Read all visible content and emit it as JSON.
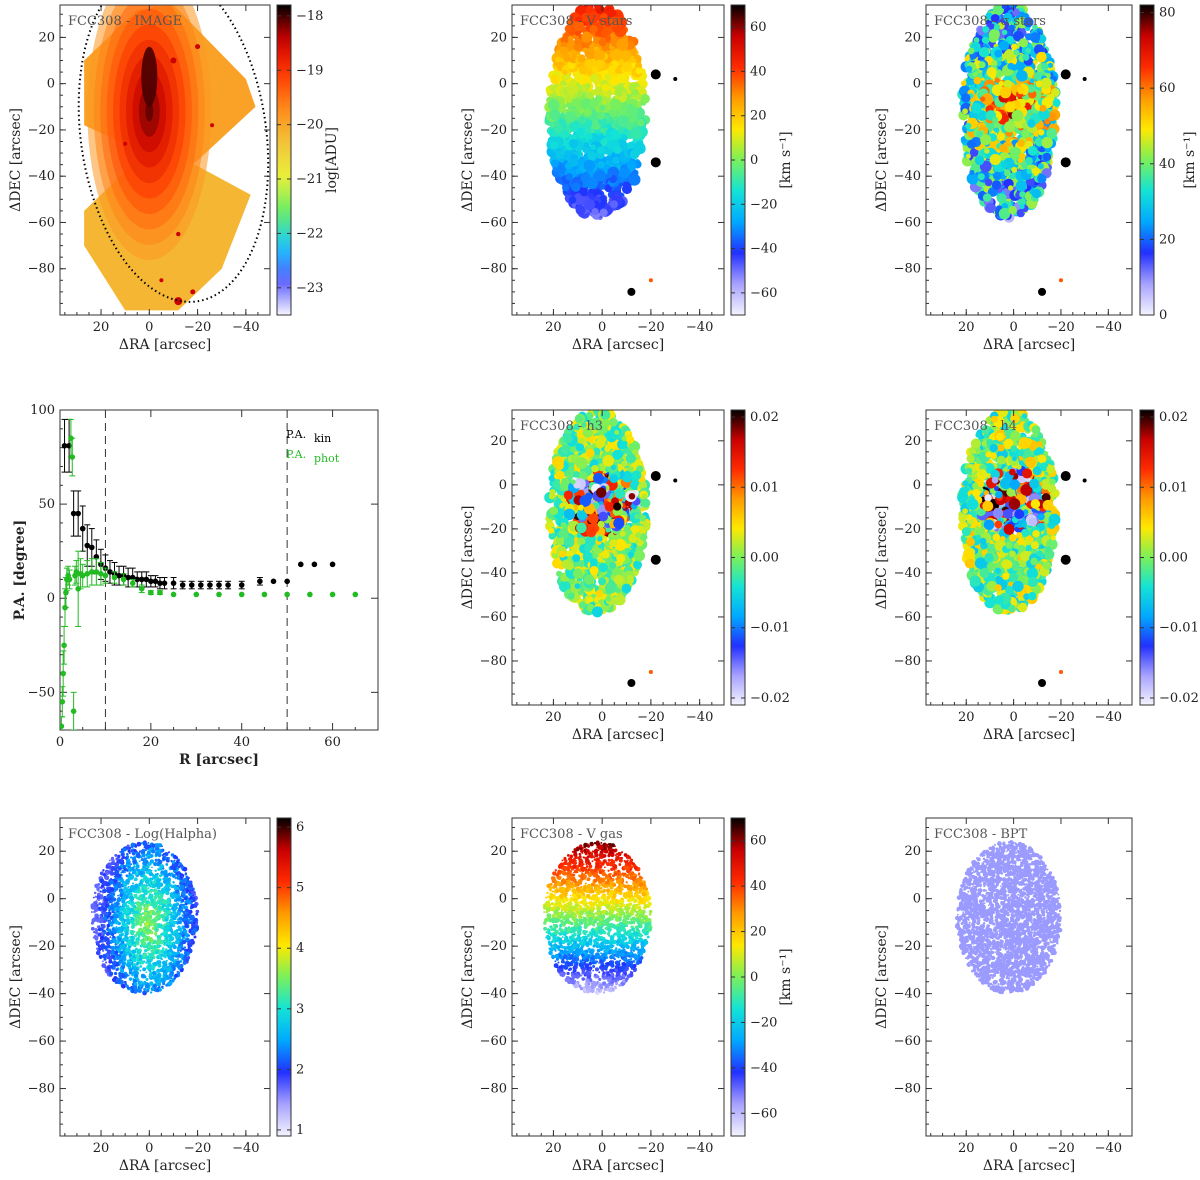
{
  "colormaps": {
    "rainbow": [
      "#f4f4ff",
      "#a7a2ff",
      "#2230ff",
      "#00a8ff",
      "#13e3d6",
      "#7af05a",
      "#ffe800",
      "#ff9a00",
      "#ff2a00",
      "#c80000",
      "#000000"
    ],
    "image": [
      "#f6f6ff",
      "#5a5aff",
      "#18c8ff",
      "#66ee66",
      "#eaf03a",
      "#f2c43a",
      "#ff8a1a",
      "#ff3a00",
      "#cc0000",
      "#000000"
    ]
  },
  "axis_labels": {
    "ra": "ΔRA [arcsec]",
    "dec": "ΔDEC [arcsec]"
  },
  "chart_data": [
    {
      "type": "heatmap",
      "id": "image",
      "title": "FCC308 - IMAGE",
      "xlabel": "ΔRA [arcsec]",
      "ylabel": "ΔDEC [arcsec]",
      "xlim": [
        37,
        -50
      ],
      "ylim": [
        -100,
        34
      ],
      "xticks": [
        20,
        0,
        -20,
        -40
      ],
      "yticks": [
        20,
        0,
        -20,
        -40,
        -60,
        -80
      ],
      "colorbar": {
        "label": "log[ADU]",
        "range": [
          -23.5,
          -17.8
        ],
        "ticks": [
          -18,
          -19,
          -20,
          -21,
          -22,
          -23
        ],
        "cmap": "image"
      },
      "annotation": "dotted ellipse (effective radius)"
    },
    {
      "type": "heatmap",
      "id": "v-stars",
      "title": "FCC308 - V stars",
      "xlabel": "ΔRA [arcsec]",
      "ylabel": "ΔDEC [arcsec]",
      "xlim": [
        37,
        -50
      ],
      "ylim": [
        -100,
        34
      ],
      "xticks": [
        20,
        0,
        -20,
        -40
      ],
      "yticks": [
        20,
        0,
        -20,
        -40,
        -60,
        -80
      ],
      "colorbar": {
        "label": "[km s⁻¹]",
        "range": [
          -70,
          70
        ],
        "ticks": [
          60,
          40,
          20,
          0,
          -20,
          -40,
          -60
        ],
        "cmap": "rainbow"
      }
    },
    {
      "type": "heatmap",
      "id": "sigma-stars",
      "title": "FCC308 - σ stars",
      "xlabel": "ΔRA [arcsec]",
      "ylabel": "ΔDEC [arcsec]",
      "xlim": [
        37,
        -50
      ],
      "ylim": [
        -100,
        34
      ],
      "xticks": [
        20,
        0,
        -20,
        -40
      ],
      "yticks": [
        20,
        0,
        -20,
        -40,
        -60,
        -80
      ],
      "colorbar": {
        "label": "[km s⁻¹]",
        "range": [
          0,
          82
        ],
        "ticks": [
          80,
          60,
          40,
          20,
          0
        ],
        "cmap": "rainbow"
      }
    },
    {
      "type": "scatter",
      "id": "pa-profile",
      "xlabel": "R [arcsec]",
      "ylabel": "P.A. [degree]",
      "xlim": [
        0,
        70
      ],
      "ylim": [
        -70,
        100
      ],
      "xticks": [
        0,
        20,
        40,
        60
      ],
      "yticks": [
        -50,
        0,
        50,
        100
      ],
      "vlines": [
        10,
        50
      ],
      "series": [
        {
          "name": "P.A.kin",
          "label_main": "P.A.",
          "label_sub": "kin",
          "color": "#000000",
          "x": [
            1,
            2,
            3,
            4,
            5,
            6,
            7,
            8,
            9,
            10,
            11,
            12,
            13,
            14,
            15,
            16,
            17,
            18,
            19,
            20,
            21,
            22,
            23,
            25,
            27,
            29,
            31,
            33,
            35,
            37,
            40,
            44,
            47,
            50,
            53,
            56,
            60
          ],
          "y": [
            81,
            81,
            45,
            45,
            37,
            28,
            27,
            22,
            18,
            16,
            14,
            13,
            12,
            12,
            11,
            11,
            10,
            10,
            10,
            9,
            9,
            8,
            8,
            8,
            7,
            7,
            7,
            7,
            7,
            7,
            7,
            9,
            9,
            9,
            18,
            18,
            18
          ],
          "err": [
            14,
            14,
            12,
            12,
            12,
            11,
            10,
            9,
            8,
            7,
            6,
            6,
            5,
            5,
            5,
            5,
            4,
            4,
            4,
            3,
            3,
            3,
            3,
            3,
            2,
            2,
            2,
            2,
            2,
            2,
            2,
            2,
            0,
            0,
            0,
            0,
            0
          ]
        },
        {
          "name": "P.A.phot",
          "label_main": "P.A.",
          "label_sub": "phot",
          "color": "#22bb22",
          "x": [
            0.3,
            0.5,
            0.7,
            0.9,
            1.1,
            1.3,
            1.5,
            1.8,
            2.1,
            2.4,
            2.7,
            3.0,
            3.3,
            3.6,
            4.0,
            4.5,
            5,
            6,
            7,
            8,
            9,
            10,
            12,
            14,
            16,
            18,
            20,
            22,
            25,
            30,
            35,
            40,
            45,
            50,
            55,
            60,
            65
          ],
          "y": [
            -68,
            -55,
            -40,
            -25,
            -5,
            3,
            10,
            12,
            10,
            85,
            75,
            -60,
            12,
            14,
            5,
            13,
            12,
            13,
            14,
            14,
            13,
            12,
            11,
            10,
            8,
            5,
            3,
            3,
            2,
            2,
            2,
            2,
            2,
            2,
            2,
            2,
            2
          ],
          "err": [
            5,
            8,
            12,
            10,
            10,
            8,
            6,
            5,
            5,
            10,
            10,
            10,
            5,
            6,
            20,
            8,
            6,
            7,
            7,
            7,
            6,
            4,
            3,
            3,
            2,
            2,
            1,
            1,
            0,
            0,
            0,
            0,
            0,
            0,
            0,
            0,
            0
          ]
        }
      ]
    },
    {
      "type": "heatmap",
      "id": "h3",
      "title": "FCC308 - h3",
      "xlabel": "ΔRA [arcsec]",
      "ylabel": "ΔDEC [arcsec]",
      "xlim": [
        37,
        -50
      ],
      "ylim": [
        -100,
        34
      ],
      "xticks": [
        20,
        0,
        -20,
        -40
      ],
      "yticks": [
        20,
        0,
        -20,
        -40,
        -60,
        -80
      ],
      "colorbar": {
        "label": "",
        "range": [
          -0.021,
          0.021
        ],
        "ticks": [
          "0.02",
          "0.01",
          "0.00",
          "−0.01",
          "−0.02"
        ],
        "tick_values": [
          0.02,
          0.01,
          0,
          -0.01,
          -0.02
        ],
        "cmap": "rainbow"
      }
    },
    {
      "type": "heatmap",
      "id": "h4",
      "title": "FCC308 - h4",
      "xlabel": "ΔRA [arcsec]",
      "ylabel": "ΔDEC [arcsec]",
      "xlim": [
        37,
        -50
      ],
      "ylim": [
        -100,
        34
      ],
      "xticks": [
        20,
        0,
        -20,
        -40
      ],
      "yticks": [
        20,
        0,
        -20,
        -40,
        -60,
        -80
      ],
      "colorbar": {
        "label": "",
        "range": [
          -0.021,
          0.021
        ],
        "ticks": [
          "0.02",
          "0.01",
          "0.00",
          "−0.01",
          "−0.02"
        ],
        "tick_values": [
          0.02,
          0.01,
          0,
          -0.01,
          -0.02
        ],
        "cmap": "rainbow"
      }
    },
    {
      "type": "heatmap",
      "id": "halpha",
      "title": "FCC308 - Log(Halpha)",
      "xlabel": "ΔRA [arcsec]",
      "ylabel": "ΔDEC [arcsec]",
      "xlim": [
        37,
        -50
      ],
      "ylim": [
        -100,
        34
      ],
      "xticks": [
        20,
        0,
        -20,
        -40
      ],
      "yticks": [
        20,
        0,
        -20,
        -40,
        -60,
        -80
      ],
      "colorbar": {
        "label": "",
        "range": [
          0.9,
          6.15
        ],
        "ticks": [
          6,
          5,
          4,
          3,
          2,
          1
        ],
        "cmap": "rainbow"
      }
    },
    {
      "type": "heatmap",
      "id": "v-gas",
      "title": "FCC308 - V gas",
      "xlabel": "ΔRA [arcsec]",
      "ylabel": "ΔDEC [arcsec]",
      "xlim": [
        37,
        -50
      ],
      "ylim": [
        -100,
        34
      ],
      "xticks": [
        20,
        0,
        -20,
        -40
      ],
      "yticks": [
        20,
        0,
        -20,
        -40,
        -60,
        -80
      ],
      "colorbar": {
        "label": "[km s⁻¹]",
        "range": [
          -70,
          70
        ],
        "ticks": [
          60,
          40,
          20,
          0,
          -20,
          -40,
          -60
        ],
        "cmap": "rainbow"
      }
    },
    {
      "type": "heatmap",
      "id": "bpt",
      "title": "FCC308 - BPT",
      "xlabel": "ΔRA [arcsec]",
      "ylabel": "ΔDEC [arcsec]",
      "xlim": [
        37,
        -50
      ],
      "ylim": [
        -100,
        34
      ],
      "xticks": [
        20,
        0,
        -20,
        -40
      ],
      "yticks": [
        20,
        0,
        -20,
        -40,
        -60,
        -80
      ],
      "fill_color": "#9a9aff"
    }
  ]
}
